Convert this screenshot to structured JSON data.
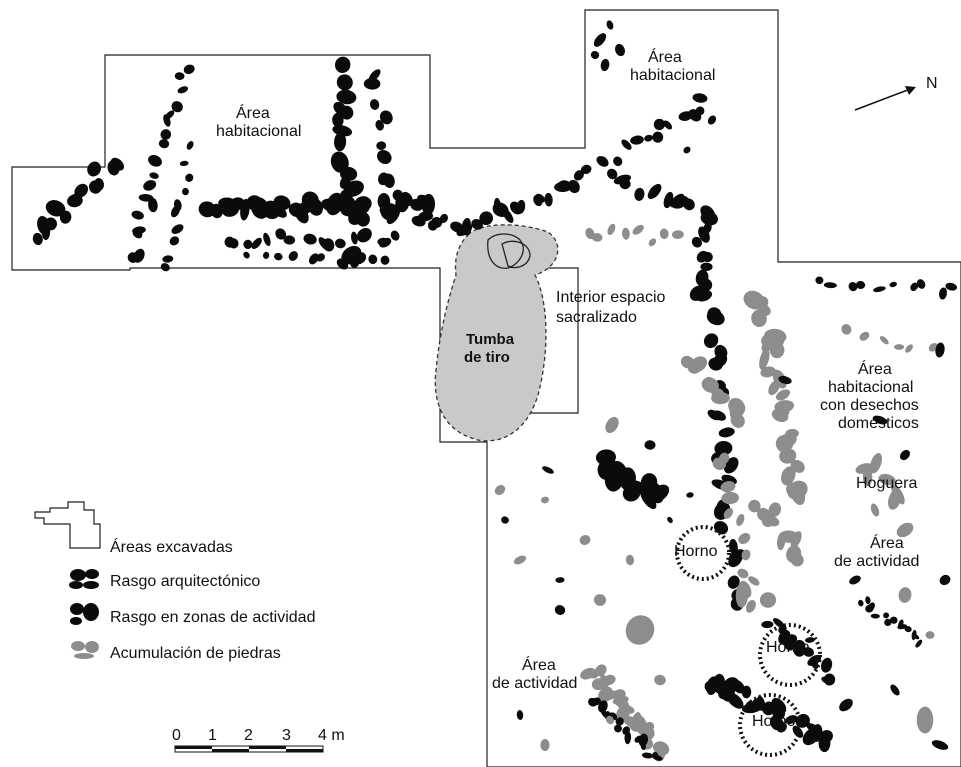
{
  "labels": {
    "area_hab_1_l1": "Área",
    "area_hab_1_l2": "habitacional",
    "area_hab_2_l1": "Área",
    "area_hab_2_l2": "habitacional",
    "interior_l1": "Interior espacio",
    "interior_l2": "sacralizado",
    "tumba_l1": "Tumba",
    "tumba_l2": "de tiro",
    "area_hab_3_l1": "Área",
    "area_hab_3_l2": "habitacional",
    "area_hab_3_l3": "con desechos",
    "area_hab_3_l4": "domésticos",
    "hoguera": "Hoguera",
    "area_act_1_l1": "Área",
    "area_act_1_l2": "de actividad",
    "area_act_2_l1": "Área",
    "area_act_2_l2": "de actividad",
    "horno_1": "Horno",
    "horno_2": "Horno",
    "horno_3": "Horno"
  },
  "north": "N",
  "legend": {
    "excavated": "Áreas excavadas",
    "architectural": "Rasgo arquitectónico",
    "activity": "Rasgo en zonas de actividad",
    "stones": "Acumulación de piedras"
  },
  "scale": {
    "ticks": [
      "0",
      "1",
      "2",
      "3",
      "4 m"
    ]
  },
  "colors": {
    "architectural": "#0b0b0b",
    "stones": "#8d8d8d",
    "tomb": "#c8c8c8",
    "outline": "#222222"
  }
}
